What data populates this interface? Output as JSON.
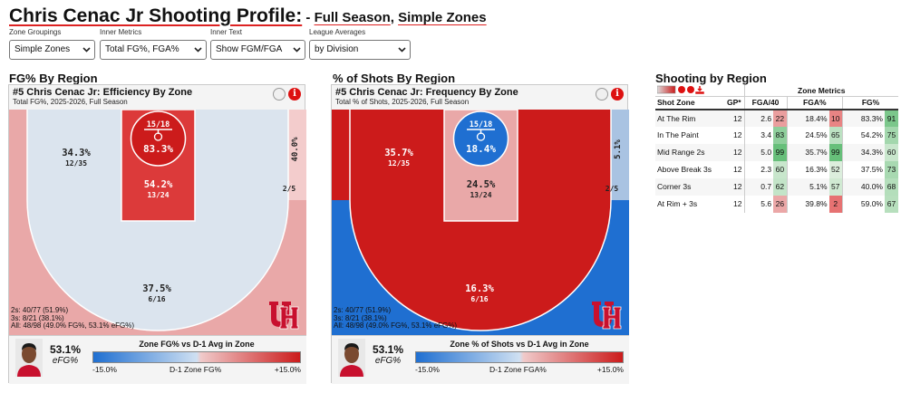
{
  "title": {
    "main": "Chris Cenac Jr Shooting Profile:",
    "sep": " - ",
    "season": "Full Season",
    "comma": ", ",
    "zones": "Simple Zones"
  },
  "controls": [
    {
      "label": "Zone Groupings",
      "value": "Simple Zones"
    },
    {
      "label": "Inner Metrics",
      "value": "Total FG%, FGA%"
    },
    {
      "label": "Inner Text",
      "value": "Show FGM/FGA"
    },
    {
      "label": "League Averages",
      "value": "by Division"
    }
  ],
  "colors": {
    "dark_red": "#cc1b1b",
    "mid_red": "#dc3a3a",
    "light_red": "#e9a8a8",
    "pale_blue": "#dbe4ee",
    "light_blue": "#a9c3e2",
    "blue": "#1f6fd1",
    "pale_red": "#f3cccc"
  },
  "panel_fg": {
    "section_title": "FG% By Region",
    "title": "#5 Chris Cenac Jr: Efficiency By Zone",
    "subtitle": "Total FG%, 2025-2026, Full Season",
    "zones": {
      "rim": {
        "pct": "83.3%",
        "ratio": "15/18"
      },
      "paint": {
        "pct": "54.2%",
        "ratio": "13/24"
      },
      "mid": {
        "pct": "34.3%",
        "ratio": "12/35"
      },
      "corner": {
        "pct": "40.0%",
        "ratio": "2/5"
      },
      "above": {
        "pct": "37.5%",
        "ratio": "6/16"
      }
    },
    "stats": [
      "2s: 40/77 (51.9%)",
      "3s: 8/21 (38.1%)",
      "All: 48/98 (49.0% FG%, 53.1% eFG%)"
    ],
    "efg_value": "53.1%",
    "efg_label": "eFG%",
    "legend_title": "Zone FG% vs D-1 Avg in Zone",
    "legend_min": "-15.0%",
    "legend_mid": "D-1 Zone FG%",
    "legend_max": "+15.0%"
  },
  "panel_freq": {
    "section_title": "% of Shots By Region",
    "title": "#5 Chris Cenac Jr: Frequency By Zone",
    "subtitle": "Total % of Shots, 2025-2026, Full Season",
    "zones": {
      "rim": {
        "pct": "18.4%",
        "ratio": "15/18"
      },
      "paint": {
        "pct": "24.5%",
        "ratio": "13/24"
      },
      "mid": {
        "pct": "35.7%",
        "ratio": "12/35"
      },
      "corner": {
        "pct": "5.1%",
        "ratio": "2/5"
      },
      "above": {
        "pct": "16.3%",
        "ratio": "6/16"
      }
    },
    "stats": [
      "2s: 40/77 (51.9%)",
      "3s: 8/21 (38.1%)",
      "All: 48/98 (49.0% FG%, 53.1% eFG%)"
    ],
    "efg_value": "53.1%",
    "efg_label": "eFG%",
    "legend_title": "Zone % of Shots vs D-1 Avg in Zone",
    "legend_min": "-15.0%",
    "legend_mid": "D-1 Zone FGA%",
    "legend_max": "+15.0%"
  },
  "table": {
    "title": "Shooting by Region",
    "group_header": "Zone Metrics",
    "headers": {
      "zone": "Shot Zone",
      "gp": "GP*",
      "fga40": "FGA/40",
      "fgapct": "FGA%",
      "fgpct": "FG%"
    },
    "rows": [
      {
        "zone": "At The Rim",
        "gp": "12",
        "fga40": "2.6",
        "fga40_p": "22",
        "fgapct": "18.4%",
        "fgapct_p": "10",
        "fgpct": "83.3%",
        "fgpct_p": "91"
      },
      {
        "zone": "In The Paint",
        "gp": "12",
        "fga40": "3.4",
        "fga40_p": "83",
        "fgapct": "24.5%",
        "fgapct_p": "65",
        "fgpct": "54.2%",
        "fgpct_p": "75"
      },
      {
        "zone": "Mid Range 2s",
        "gp": "12",
        "fga40": "5.0",
        "fga40_p": "99",
        "fgapct": "35.7%",
        "fgapct_p": "99",
        "fgpct": "34.3%",
        "fgpct_p": "60"
      },
      {
        "zone": "Above Break 3s",
        "gp": "12",
        "fga40": "2.3",
        "fga40_p": "60",
        "fgapct": "16.3%",
        "fgapct_p": "52",
        "fgpct": "37.5%",
        "fgpct_p": "73"
      },
      {
        "zone": "Corner 3s",
        "gp": "12",
        "fga40": "0.7",
        "fga40_p": "62",
        "fgapct": "5.1%",
        "fgapct_p": "57",
        "fgpct": "40.0%",
        "fgpct_p": "68"
      },
      {
        "zone": "At Rim + 3s",
        "gp": "12",
        "fga40": "5.6",
        "fga40_p": "26",
        "fgapct": "39.8%",
        "fgapct_p": "2",
        "fgpct": "59.0%",
        "fgpct_p": "67"
      }
    ]
  }
}
